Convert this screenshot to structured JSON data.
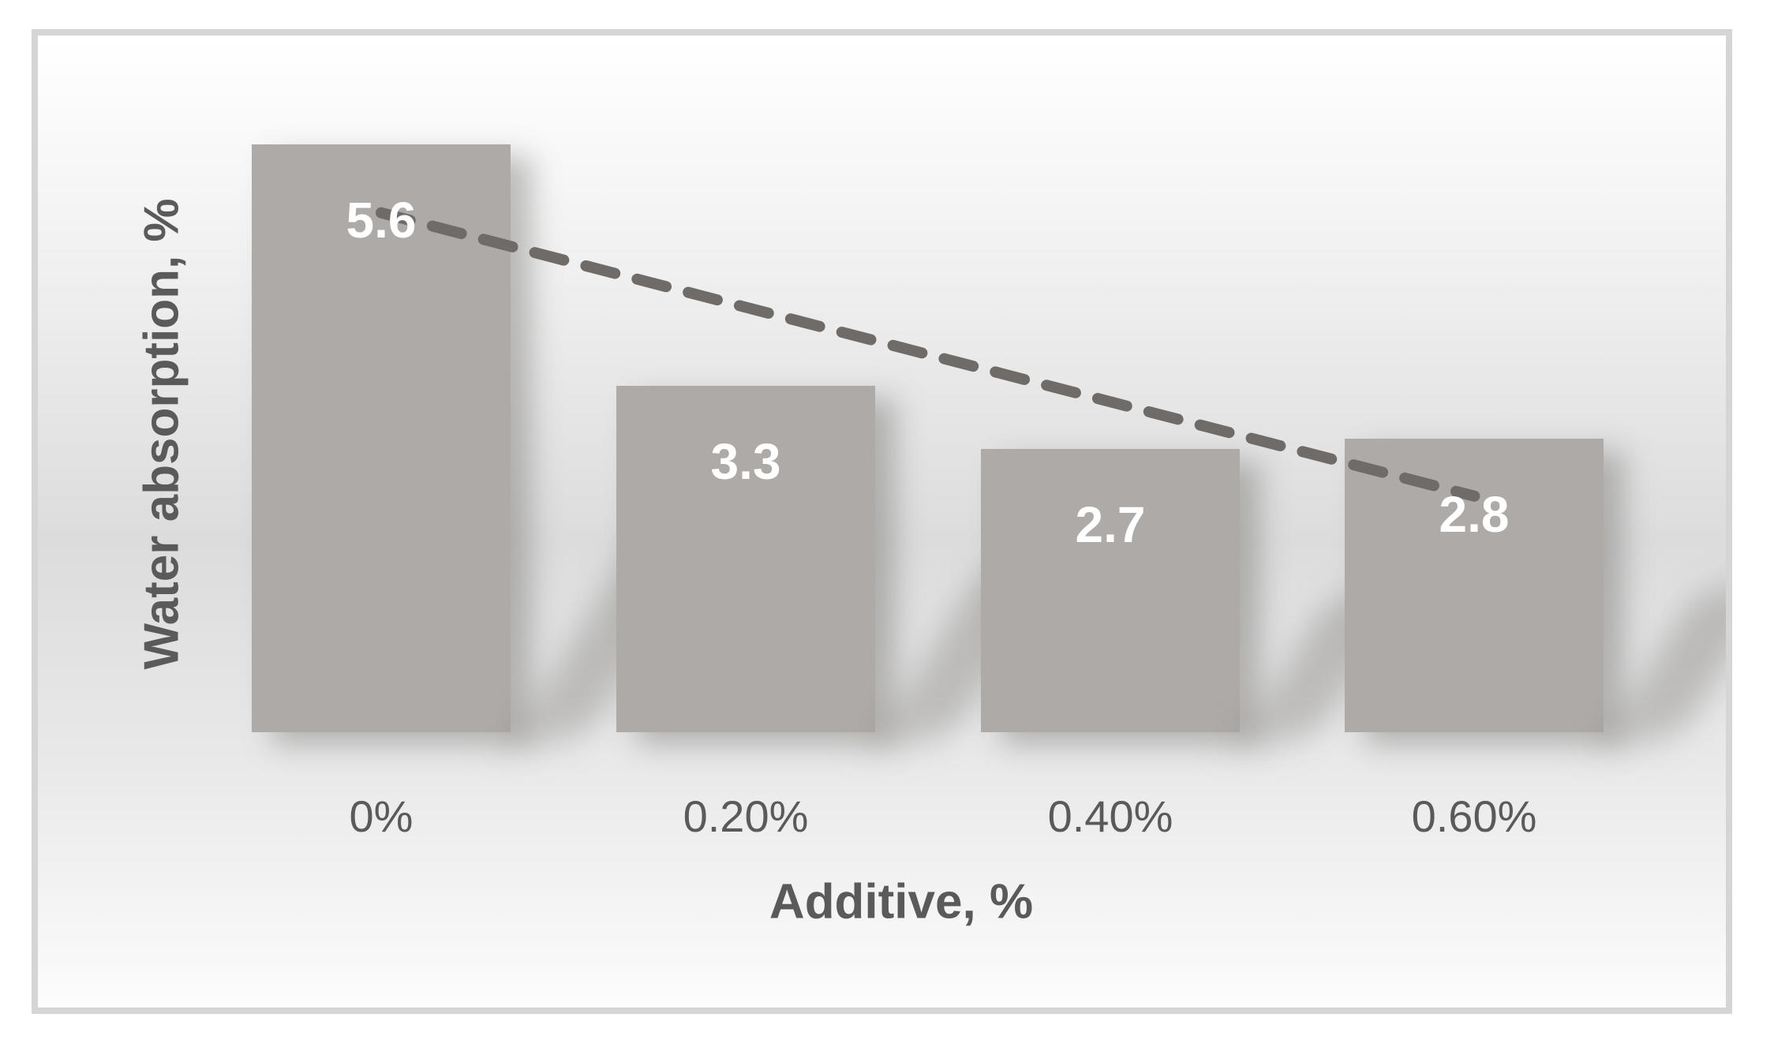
{
  "chart_data": {
    "type": "bar",
    "title": "",
    "categories": [
      "0%",
      "0.20%",
      "0.40%",
      "0.60%"
    ],
    "values": [
      5.6,
      3.3,
      2.7,
      2.8
    ],
    "data_labels": [
      "5.6",
      "3.3",
      "2.7",
      "2.8"
    ],
    "xlabel": "Additive, %",
    "ylabel": "Water absorption, %",
    "ylim": [
      0,
      6.7
    ],
    "grid": false,
    "legend": "none",
    "trendline": {
      "type": "linear",
      "style": "dashed",
      "color": "#6f6b69"
    },
    "colors": {
      "bar_fill": "#aeaaa8",
      "bar_label_text": "#ffffff",
      "axis_text": "#5a5a5a",
      "frame_border": "#d5d5d5",
      "trend_line": "#6f6b69"
    }
  }
}
